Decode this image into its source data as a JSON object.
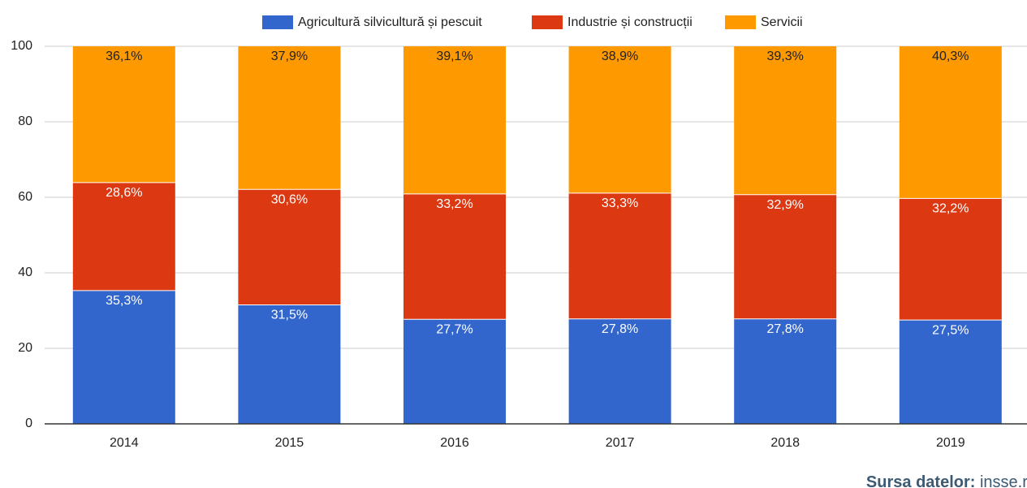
{
  "chart_data": {
    "type": "stacked_bar",
    "categories": [
      "2014",
      "2015",
      "2016",
      "2017",
      "2018",
      "2019"
    ],
    "series": [
      {
        "name": "Agricultură silvicultură și pescuit",
        "color": "#3366cc",
        "label_color": "#ffffff",
        "values": [
          35.3,
          31.5,
          27.7,
          27.8,
          27.8,
          27.5
        ],
        "value_labels": [
          "35,3%",
          "31,5%",
          "27,7%",
          "27,8%",
          "27,8%",
          "27,5%"
        ]
      },
      {
        "name": "Industrie și construcții",
        "color": "#dc3912",
        "label_color": "#ffffff",
        "values": [
          28.6,
          30.6,
          33.2,
          33.3,
          32.9,
          32.2
        ],
        "value_labels": [
          "28,6%",
          "30,6%",
          "33,2%",
          "33,3%",
          "32,9%",
          "32,2%"
        ]
      },
      {
        "name": "Servicii",
        "color": "#ff9900",
        "label_color": "#222222",
        "values": [
          36.1,
          37.9,
          39.1,
          38.9,
          39.3,
          40.3
        ],
        "value_labels": [
          "36,1%",
          "37,9%",
          "39,1%",
          "38,9%",
          "39,3%",
          "40,3%"
        ]
      }
    ],
    "ylim": [
      0,
      100
    ],
    "yticks": [
      0,
      20,
      40,
      60,
      80,
      100
    ],
    "grid": true,
    "legend": "top",
    "source_label": "Sursa datelor:",
    "source": "insse.ro"
  }
}
